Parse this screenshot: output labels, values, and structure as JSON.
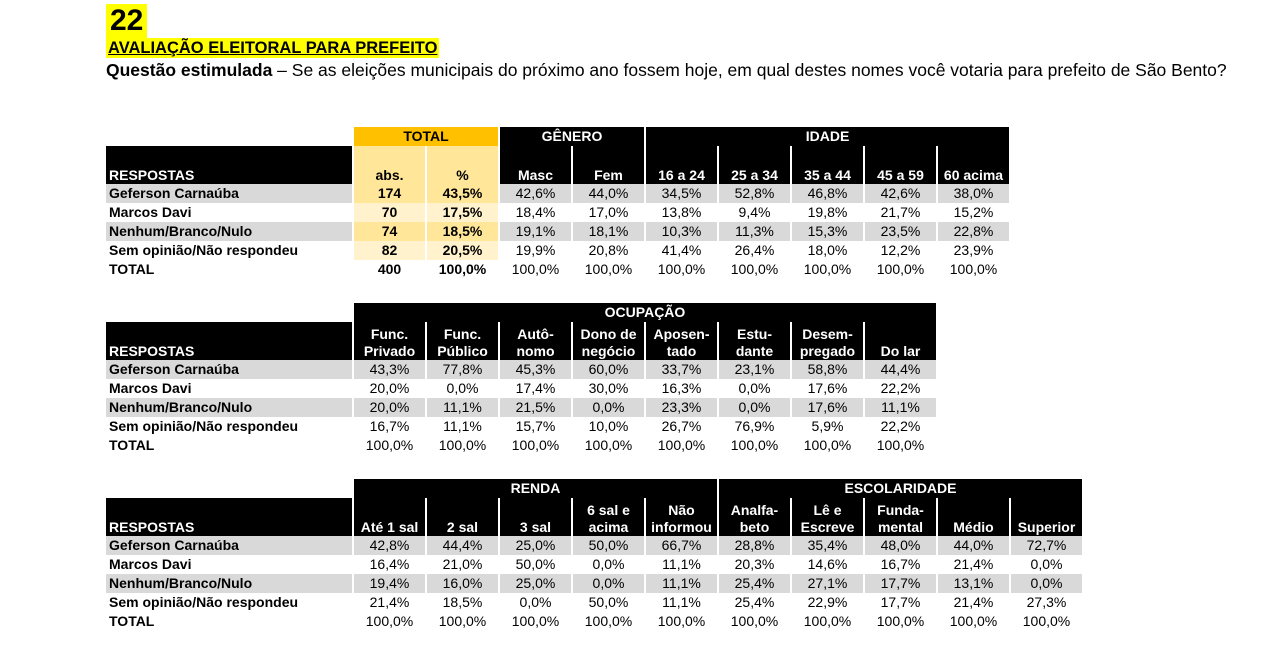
{
  "header": {
    "number": "22",
    "title": "AVALIAÇÃO ELEITORAL PARA PREFEITO",
    "question_label": "Questão estimulada",
    "question_text": " – Se as eleições municipais do próximo ano fossem hoje, em qual destes nomes você votaria para prefeito de São Bento?"
  },
  "table1": {
    "group_total": "TOTAL",
    "group_genero": "GÊNERO",
    "group_idade": "IDADE",
    "col_respostas": "RESPOSTAS",
    "cols": [
      "abs.",
      "%",
      "Masc",
      "Fem",
      "16 a 24",
      "25 a 34",
      "35 a 44",
      "45 a 59",
      "60 acima"
    ],
    "rows": [
      {
        "label": "Geferson Carnaúba",
        "values": [
          "174",
          "43,5%",
          "42,6%",
          "44,0%",
          "34,5%",
          "52,8%",
          "46,8%",
          "42,6%",
          "38,0%"
        ]
      },
      {
        "label": "Marcos Davi",
        "values": [
          "70",
          "17,5%",
          "18,4%",
          "17,0%",
          "13,8%",
          "9,4%",
          "19,8%",
          "21,7%",
          "15,2%"
        ]
      },
      {
        "label": "Nenhum/Branco/Nulo",
        "values": [
          "74",
          "18,5%",
          "19,1%",
          "18,1%",
          "10,3%",
          "11,3%",
          "15,3%",
          "23,5%",
          "22,8%"
        ]
      },
      {
        "label": "Sem opinião/Não respondeu",
        "values": [
          "82",
          "20,5%",
          "19,9%",
          "20,8%",
          "41,4%",
          "26,4%",
          "18,0%",
          "12,2%",
          "23,9%"
        ]
      },
      {
        "label": "TOTAL",
        "values": [
          "400",
          "100,0%",
          "100,0%",
          "100,0%",
          "100,0%",
          "100,0%",
          "100,0%",
          "100,0%",
          "100,0%"
        ]
      }
    ]
  },
  "table2": {
    "group_ocupacao": "OCUPAÇÃO",
    "col_respostas": "RESPOSTAS",
    "cols": [
      [
        "Func.",
        "Privado"
      ],
      [
        "Func.",
        "Público"
      ],
      [
        "Autô-",
        "nomo"
      ],
      [
        "Dono de",
        "negócio"
      ],
      [
        "Aposen-",
        "tado"
      ],
      [
        "Estu-",
        "dante"
      ],
      [
        "Desem-",
        "pregado"
      ],
      [
        "",
        "Do lar"
      ]
    ],
    "rows": [
      {
        "label": "Geferson Carnaúba",
        "values": [
          "43,3%",
          "77,8%",
          "45,3%",
          "60,0%",
          "33,7%",
          "23,1%",
          "58,8%",
          "44,4%"
        ]
      },
      {
        "label": "Marcos Davi",
        "values": [
          "20,0%",
          "0,0%",
          "17,4%",
          "30,0%",
          "16,3%",
          "0,0%",
          "17,6%",
          "22,2%"
        ]
      },
      {
        "label": "Nenhum/Branco/Nulo",
        "values": [
          "20,0%",
          "11,1%",
          "21,5%",
          "0,0%",
          "23,3%",
          "0,0%",
          "17,6%",
          "11,1%"
        ]
      },
      {
        "label": "Sem opinião/Não respondeu",
        "values": [
          "16,7%",
          "11,1%",
          "15,7%",
          "10,0%",
          "26,7%",
          "76,9%",
          "5,9%",
          "22,2%"
        ]
      },
      {
        "label": "TOTAL",
        "values": [
          "100,0%",
          "100,0%",
          "100,0%",
          "100,0%",
          "100,0%",
          "100,0%",
          "100,0%",
          "100,0%"
        ]
      }
    ]
  },
  "table3": {
    "group_renda": "RENDA",
    "group_escolaridade": "ESCOLARIDADE",
    "col_respostas": "RESPOSTAS",
    "cols": [
      [
        "",
        "Até 1 sal"
      ],
      [
        "",
        "2 sal"
      ],
      [
        "",
        "3 sal"
      ],
      [
        "6 sal e",
        "acima"
      ],
      [
        "Não",
        "informou"
      ],
      [
        "Analfa-",
        "beto"
      ],
      [
        "Lê e",
        "Escreve"
      ],
      [
        "Funda-",
        "mental"
      ],
      [
        "",
        "Médio"
      ],
      [
        "",
        "Superior"
      ]
    ],
    "rows": [
      {
        "label": "Geferson Carnaúba",
        "values": [
          "42,8%",
          "44,4%",
          "25,0%",
          "50,0%",
          "66,7%",
          "28,8%",
          "35,4%",
          "48,0%",
          "44,0%",
          "72,7%"
        ]
      },
      {
        "label": "Marcos Davi",
        "values": [
          "16,4%",
          "21,0%",
          "50,0%",
          "0,0%",
          "11,1%",
          "20,3%",
          "14,6%",
          "16,7%",
          "21,4%",
          "0,0%"
        ]
      },
      {
        "label": "Nenhum/Branco/Nulo",
        "values": [
          "19,4%",
          "16,0%",
          "25,0%",
          "0,0%",
          "11,1%",
          "25,4%",
          "27,1%",
          "17,7%",
          "13,1%",
          "0,0%"
        ]
      },
      {
        "label": "Sem opinião/Não respondeu",
        "values": [
          "21,4%",
          "18,5%",
          "0,0%",
          "50,0%",
          "11,1%",
          "25,4%",
          "22,9%",
          "17,7%",
          "21,4%",
          "27,3%"
        ]
      },
      {
        "label": "TOTAL",
        "values": [
          "100,0%",
          "100,0%",
          "100,0%",
          "100,0%",
          "100,0%",
          "100,0%",
          "100,0%",
          "100,0%",
          "100,0%",
          "100,0%"
        ]
      }
    ]
  }
}
